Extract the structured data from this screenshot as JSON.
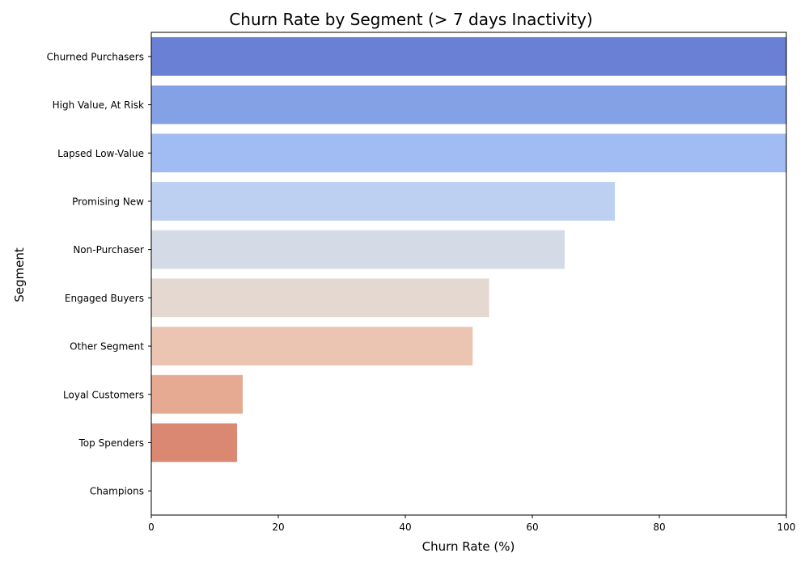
{
  "chart_data": {
    "type": "bar",
    "orientation": "horizontal",
    "title": "Churn Rate by Segment (> 7 days Inactivity)",
    "xlabel": "Churn Rate (%)",
    "ylabel": "Segment",
    "xlim": [
      0,
      100
    ],
    "x_ticks": [
      "0",
      "20",
      "40",
      "60",
      "80",
      "100"
    ],
    "grid": false,
    "categories": [
      "Churned Purchasers",
      "High Value, At Risk",
      "Lapsed Low-Value",
      "Promising New",
      "Non-Purchaser",
      "Engaged Buyers",
      "Other Segment",
      "Loyal Customers",
      "Top Spenders",
      "Champions"
    ],
    "values": [
      100,
      100,
      100,
      73,
      65.1,
      53.2,
      50.6,
      14.4,
      13.5,
      0
    ],
    "colors": [
      "#6a80d4",
      "#85a1e6",
      "#a1bcf3",
      "#bdd0f2",
      "#d4dae6",
      "#e4d8d1",
      "#ecc5b2",
      "#e6a991",
      "#db8872",
      "#d0644f"
    ]
  }
}
